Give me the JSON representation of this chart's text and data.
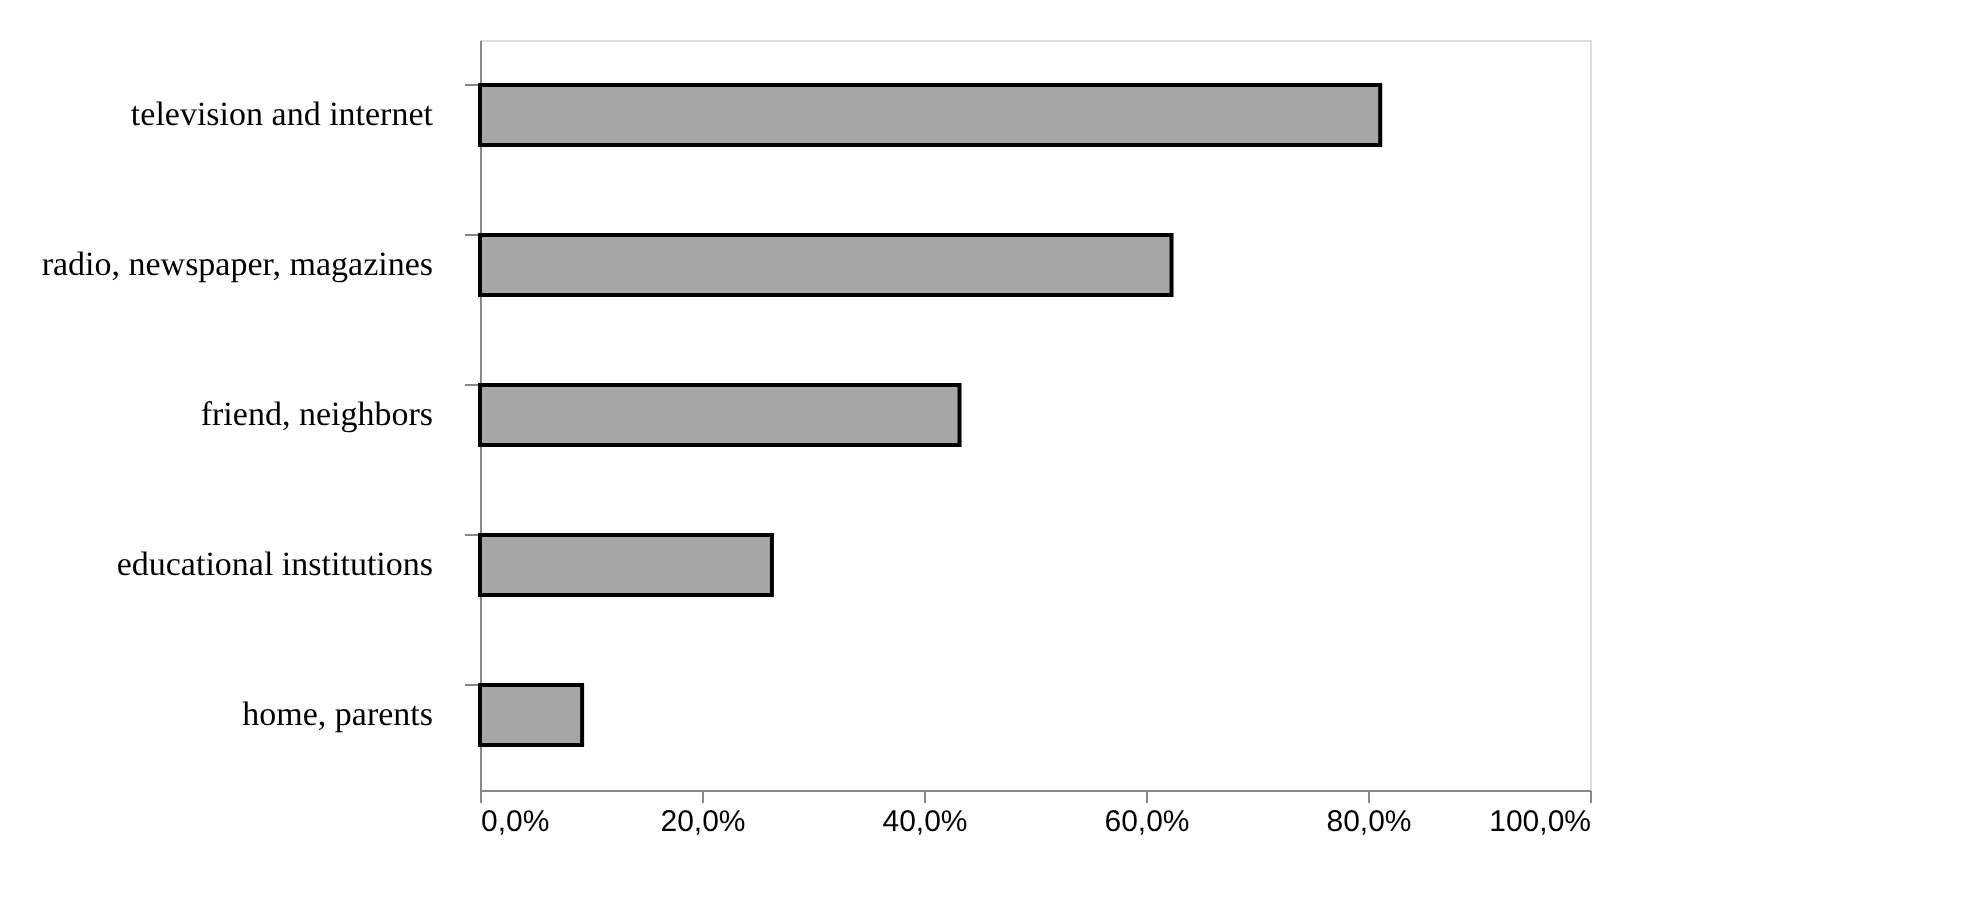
{
  "chart_data": {
    "type": "bar",
    "orientation": "horizontal",
    "categories": [
      "television and internet",
      "radio, newspaper, magazines",
      "friend, neighbors",
      "educational institutions",
      "home, parents"
    ],
    "values": [
      81.1,
      62.3,
      43.2,
      26.3,
      9.2
    ],
    "color": "#a6a6a6",
    "xlim": [
      0,
      100
    ],
    "xticks": [
      {
        "value": 0,
        "label": "0,0%"
      },
      {
        "value": 20,
        "label": "20,0%"
      },
      {
        "value": 40,
        "label": "40,0%"
      },
      {
        "value": 60,
        "label": "60,0%"
      },
      {
        "value": 80,
        "label": "80,0%"
      },
      {
        "value": 100,
        "label": "100,0%"
      }
    ],
    "grid": false
  }
}
